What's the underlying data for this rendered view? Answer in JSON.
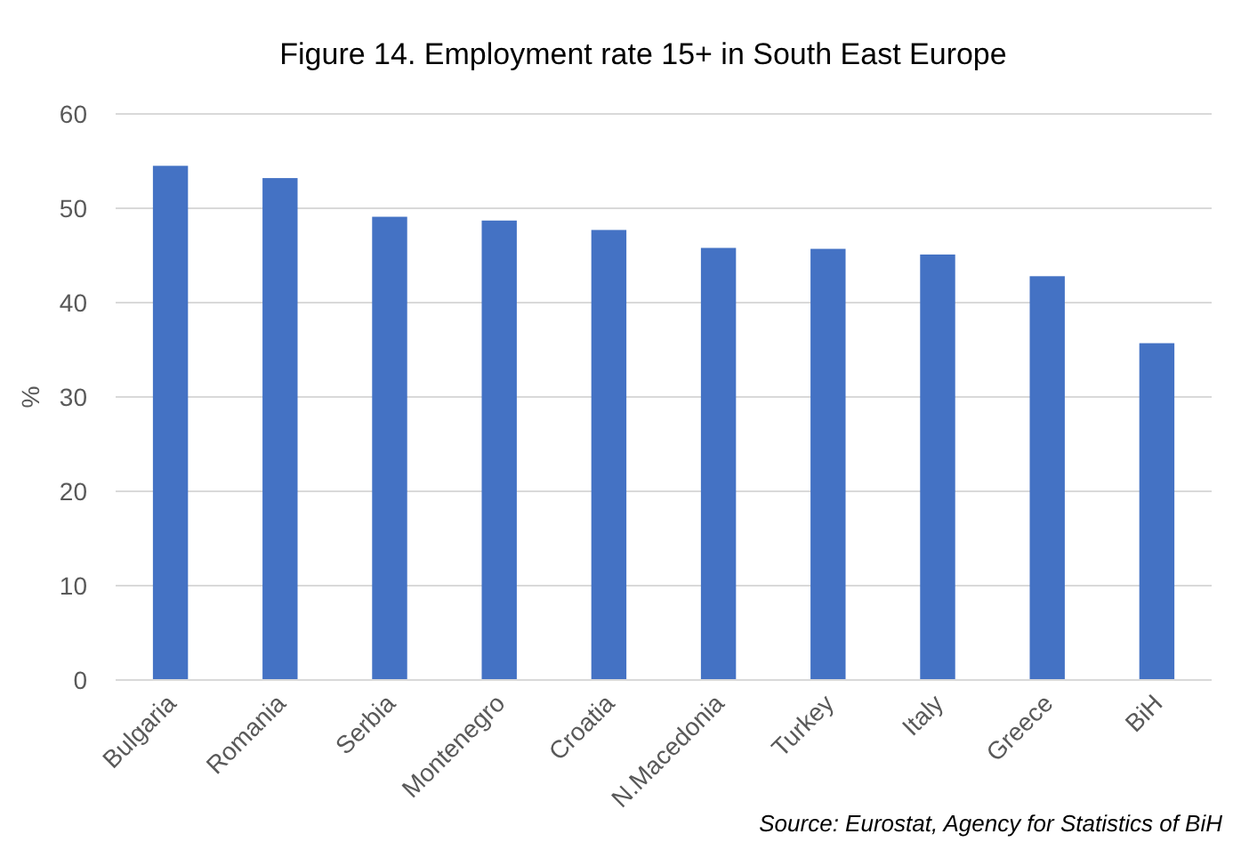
{
  "chart_data": {
    "type": "bar",
    "title": "Figure 14. Employment  rate 15+ in South East Europe",
    "ylabel": "%",
    "categories": [
      "Bulgaria",
      "Romania",
      "Serbia",
      "Montenegro",
      "Croatia",
      "N.Macedonia",
      "Turkey",
      "Italy",
      "Greece",
      "BiH"
    ],
    "values": [
      54.5,
      53.2,
      49.1,
      48.7,
      47.7,
      45.8,
      45.7,
      45.1,
      42.8,
      35.7
    ],
    "color": "#4472c4",
    "ylim": [
      0,
      60
    ],
    "yticks": [
      0,
      10,
      20,
      30,
      40,
      50,
      60
    ],
    "grid": "y",
    "annotations": [
      "Source: Eurostat, Agency for Statistics of BiH"
    ]
  }
}
